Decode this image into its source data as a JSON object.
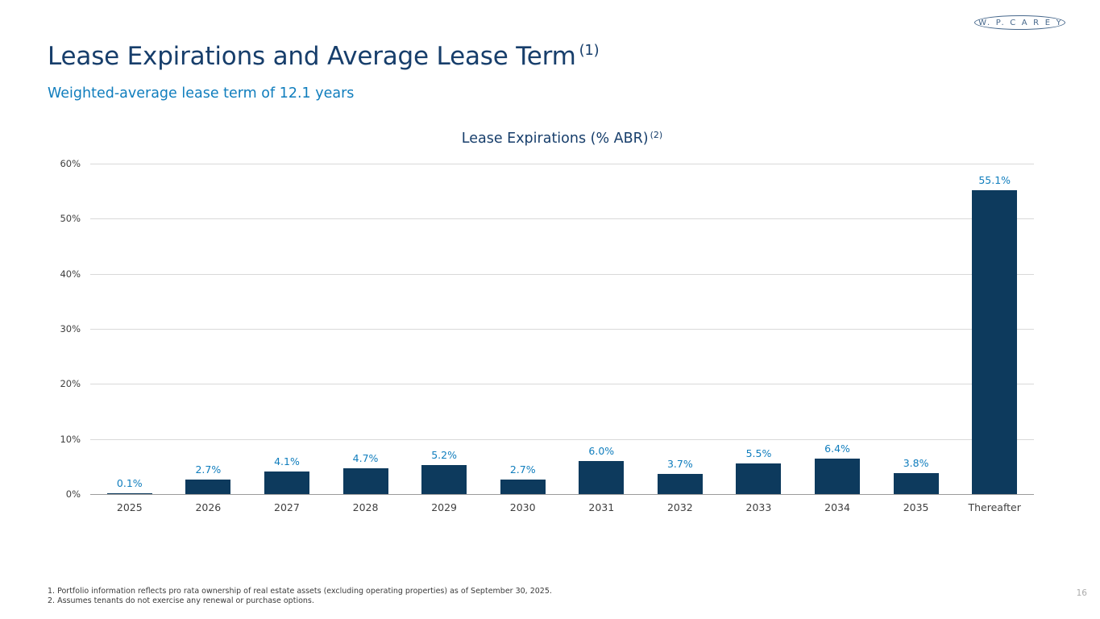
{
  "logo": {
    "text": "W. P. C A R E Y"
  },
  "header": {
    "title": "Lease Expirations and Average Lease Term",
    "title_superscript": "(1)",
    "subtitle": "Weighted-average lease term of 12.1 years"
  },
  "chart_data": {
    "type": "bar",
    "title": "Lease Expirations (% ABR)",
    "title_superscript": "(2)",
    "categories": [
      "2025",
      "2026",
      "2027",
      "2028",
      "2029",
      "2030",
      "2031",
      "2032",
      "2033",
      "2034",
      "2035",
      "Thereafter"
    ],
    "values": [
      0.1,
      2.7,
      4.1,
      4.7,
      5.2,
      2.7,
      6.0,
      3.7,
      5.5,
      6.4,
      3.8,
      55.1
    ],
    "labels": [
      "0.1%",
      "2.7%",
      "4.1%",
      "4.7%",
      "5.2%",
      "2.7%",
      "6.0%",
      "3.7%",
      "5.5%",
      "6.4%",
      "3.8%",
      "55.1%"
    ],
    "xlabel": "",
    "ylabel": "",
    "ylim": [
      0,
      60
    ],
    "y_tick_labels": [
      "0%",
      "10%",
      "20%",
      "30%",
      "40%",
      "50%",
      "60%"
    ],
    "grid": true,
    "legend_position": "none",
    "bar_color": "#0d3a5d",
    "value_label_color": "#0f7dbd",
    "axis_text_color": "#3f3f3f"
  },
  "footnotes": [
    "1. Portfolio information reflects pro rata ownership of real estate assets (excluding operating properties) as of September 30, 2025.",
    "2. Assumes tenants do not exercise any renewal or purchase options."
  ],
  "page_number": "16"
}
